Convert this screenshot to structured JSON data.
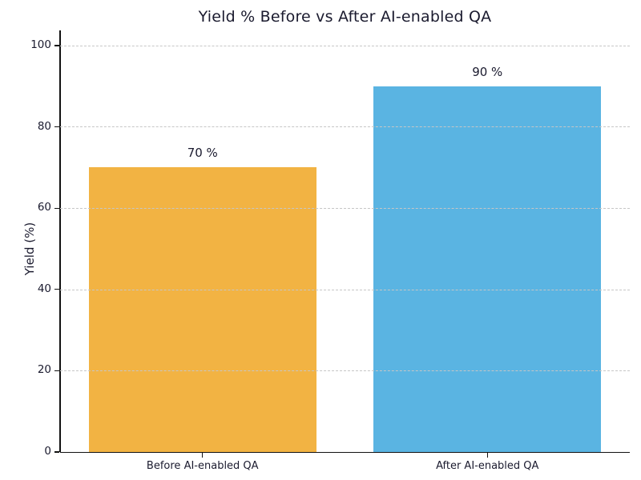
{
  "chart_data": {
    "type": "bar",
    "title": "Yield % Before vs After AI-enabled QA",
    "xlabel": "",
    "ylabel": "Yield (%)",
    "categories": [
      "Before AI-enabled QA",
      "After AI-enabled QA"
    ],
    "values": [
      70,
      90
    ],
    "value_labels": [
      "70 %",
      "90 %"
    ],
    "bar_colors": [
      "#F2B343",
      "#5AB4E2"
    ],
    "ylim": [
      0,
      100
    ],
    "yticks": [
      0,
      20,
      40,
      60,
      80,
      100
    ],
    "grid": "horizontal-dashed",
    "legend_position": "none"
  },
  "style": {
    "background_color": "#FFFFFF",
    "grid_color": "#C6C6C6",
    "axis_color": "#111111",
    "text_color": "#1A1A2E"
  }
}
